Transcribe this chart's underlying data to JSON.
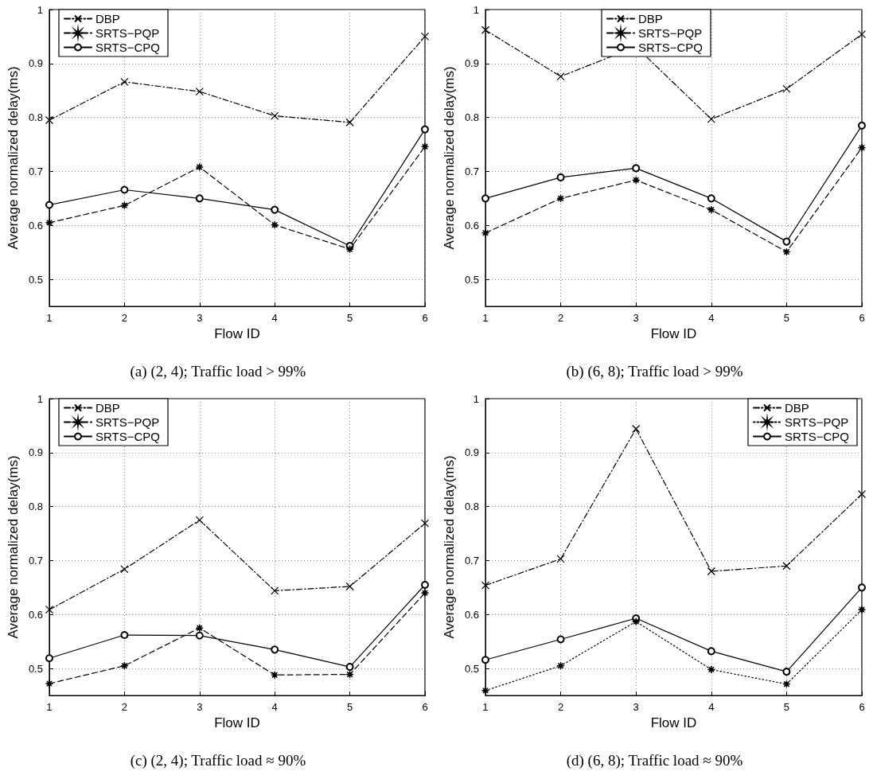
{
  "chart_data": [
    {
      "type": "line",
      "title": "(a) (2, 4); Traffic load > 99%",
      "xlabel": "Flow ID",
      "ylabel": "Average normalized delay(ms)",
      "x": [
        1,
        2,
        3,
        4,
        5,
        6
      ],
      "xlim": [
        1,
        6
      ],
      "xticks": [
        1,
        2,
        3,
        4,
        5,
        6
      ],
      "ylim": [
        0.45,
        1
      ],
      "yticks": [
        0.5,
        0.6,
        0.7,
        0.8,
        0.9,
        1
      ],
      "grid": true,
      "legend": "top left",
      "series": [
        {
          "name": "DBP",
          "color": "#000000",
          "marker": "cross",
          "line_style": "dashdot",
          "values": [
            0.795,
            0.866,
            0.848,
            0.803,
            0.791,
            0.95
          ]
        },
        {
          "name": "SRTS−PQP",
          "color": "#000000",
          "marker": "star",
          "line_style": "dashed",
          "values": [
            0.605,
            0.637,
            0.708,
            0.601,
            0.556,
            0.746
          ]
        },
        {
          "name": "SRTS−CPQ",
          "color": "#000000",
          "marker": "circle",
          "line_style": "solid",
          "values": [
            0.638,
            0.666,
            0.65,
            0.629,
            0.562,
            0.778
          ]
        }
      ]
    },
    {
      "type": "line",
      "title": "(b) (6, 8); Traffic load > 99%",
      "xlabel": "Flow ID",
      "ylabel": "Average normalized delay(ms)",
      "x": [
        1,
        2,
        3,
        4,
        5,
        6
      ],
      "xlim": [
        1,
        6
      ],
      "xticks": [
        1,
        2,
        3,
        4,
        5,
        6
      ],
      "ylim": [
        0.45,
        1
      ],
      "yticks": [
        0.5,
        0.6,
        0.7,
        0.8,
        0.9,
        1
      ],
      "grid": true,
      "legend": "top",
      "series": [
        {
          "name": "DBP",
          "color": "#000000",
          "marker": "cross",
          "line_style": "dashdot",
          "values": [
            0.962,
            0.876,
            0.931,
            0.797,
            0.853,
            0.954
          ]
        },
        {
          "name": "SRTS−PQP",
          "color": "#000000",
          "marker": "star",
          "line_style": "dashed",
          "values": [
            0.586,
            0.65,
            0.684,
            0.629,
            0.551,
            0.744
          ]
        },
        {
          "name": "SRTS−CPQ",
          "color": "#000000",
          "marker": "circle",
          "line_style": "solid",
          "values": [
            0.65,
            0.689,
            0.706,
            0.65,
            0.57,
            0.785
          ]
        }
      ]
    },
    {
      "type": "line",
      "title": "(c) (2, 4); Traffic load ≈ 90%",
      "xlabel": "Flow ID",
      "ylabel": "Average normalized delay(ms)",
      "x": [
        1,
        2,
        3,
        4,
        5,
        6
      ],
      "xlim": [
        1,
        6
      ],
      "xticks": [
        1,
        2,
        3,
        4,
        5,
        6
      ],
      "ylim": [
        0.45,
        1
      ],
      "yticks": [
        0.5,
        0.6,
        0.7,
        0.8,
        0.9,
        1
      ],
      "grid": true,
      "legend": "top left",
      "series": [
        {
          "name": "DBP",
          "color": "#000000",
          "marker": "cross",
          "line_style": "dashdot",
          "values": [
            0.609,
            0.684,
            0.775,
            0.644,
            0.652,
            0.769
          ]
        },
        {
          "name": "SRTS−PQP",
          "color": "#000000",
          "marker": "star",
          "line_style": "dashed",
          "values": [
            0.472,
            0.505,
            0.575,
            0.488,
            0.489,
            0.64
          ]
        },
        {
          "name": "SRTS−CPQ",
          "color": "#000000",
          "marker": "circle",
          "line_style": "solid",
          "values": [
            0.519,
            0.562,
            0.561,
            0.535,
            0.503,
            0.655
          ]
        }
      ]
    },
    {
      "type": "line",
      "title": "(d) (6, 8); Traffic load ≈ 90%",
      "xlabel": "Flow ID",
      "ylabel": "Average normalized delay(ms)",
      "x": [
        1,
        2,
        3,
        4,
        5,
        6
      ],
      "xlim": [
        1,
        6
      ],
      "xticks": [
        1,
        2,
        3,
        4,
        5,
        6
      ],
      "ylim": [
        0.45,
        1
      ],
      "yticks": [
        0.5,
        0.6,
        0.7,
        0.8,
        0.9,
        1
      ],
      "grid": true,
      "legend": "top right",
      "series": [
        {
          "name": "DBP",
          "color": "#000000",
          "marker": "cross",
          "line_style": "dashdot",
          "values": [
            0.654,
            0.703,
            0.944,
            0.68,
            0.69,
            0.823
          ]
        },
        {
          "name": "SRTS−PQP",
          "color": "#000000",
          "marker": "star",
          "line_style": "dotted",
          "values": [
            0.459,
            0.505,
            0.587,
            0.498,
            0.471,
            0.609
          ]
        },
        {
          "name": "SRTS−CPQ",
          "color": "#000000",
          "marker": "circle",
          "line_style": "solid",
          "values": [
            0.516,
            0.554,
            0.593,
            0.532,
            0.494,
            0.65
          ]
        }
      ]
    }
  ]
}
